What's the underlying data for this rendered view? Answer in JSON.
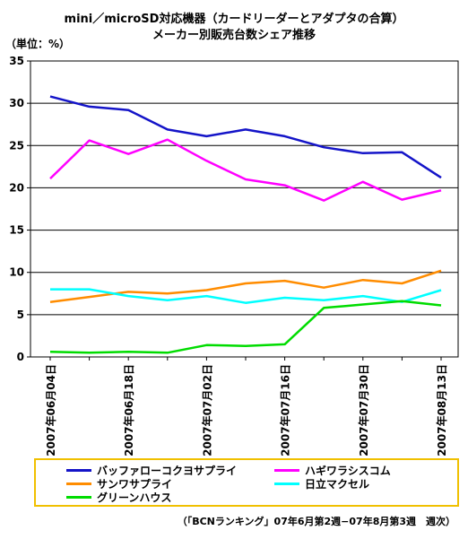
{
  "title_line1": "mini／microSD対応機器（カードリーダーとアダプタの合算）",
  "title_line2": "メーカー別販売台数シェア推移",
  "unit_label": "（単位：%）",
  "source_note": "（「BCNランキング」07年6月第2週−07年8月第3週　週次）",
  "chart_data": {
    "type": "line",
    "ylim": [
      0,
      35
    ],
    "yticks": [
      0,
      5,
      10,
      15,
      20,
      25,
      30,
      35
    ],
    "grid": true,
    "legend_position": "bottom",
    "x_tick_labels": [
      "2007年06月04日",
      "2007年06月18日",
      "2007年07月02日",
      "2007年07月16日",
      "2007年07月30日",
      "2007年08月13日"
    ],
    "x": [
      "2007-06-04",
      "2007-06-11",
      "2007-06-18",
      "2007-06-25",
      "2007-07-02",
      "2007-07-09",
      "2007-07-16",
      "2007-07-23",
      "2007-07-30",
      "2007-08-06",
      "2007-08-13"
    ],
    "series": [
      {
        "name": "バッファローコクヨサプライ",
        "color": "#1414c8",
        "values": [
          30.8,
          29.6,
          29.2,
          26.9,
          26.1,
          26.9,
          26.1,
          24.8,
          24.1,
          24.2,
          21.2
        ]
      },
      {
        "name": "ハギワラシスコム",
        "color": "#ff00ff",
        "values": [
          21.1,
          25.6,
          24.0,
          25.7,
          23.2,
          21.0,
          20.3,
          18.5,
          20.7,
          18.6,
          19.7
        ]
      },
      {
        "name": "サンワサプライ",
        "color": "#ff8c00",
        "values": [
          6.5,
          7.1,
          7.7,
          7.5,
          7.9,
          8.7,
          9.0,
          8.2,
          9.1,
          8.7,
          10.2
        ]
      },
      {
        "name": "日立マクセル",
        "color": "#00ffff",
        "values": [
          8.0,
          8.0,
          7.2,
          6.7,
          7.2,
          6.4,
          7.0,
          6.7,
          7.2,
          6.5,
          7.9
        ]
      },
      {
        "name": "グリーンハウス",
        "color": "#00dc00",
        "values": [
          0.6,
          0.5,
          0.6,
          0.5,
          1.4,
          1.3,
          1.5,
          5.8,
          6.2,
          6.6,
          6.1
        ]
      }
    ]
  }
}
